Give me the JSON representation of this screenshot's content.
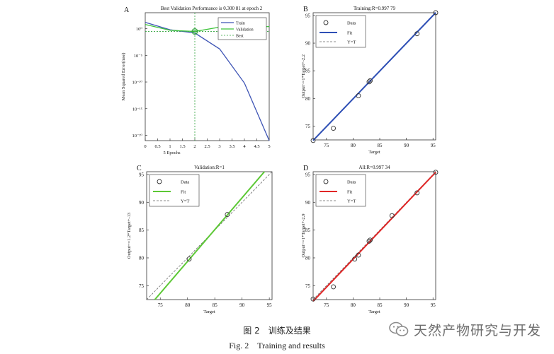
{
  "caption": {
    "chinese": "图 2　训练及结果",
    "english": "Fig. 2　Training and results"
  },
  "watermark": {
    "text": "天然产物研究与开发",
    "icon": "wechat-icon"
  },
  "colors": {
    "train": "#3f55b5",
    "validation_curve": "#3ec43a",
    "best_line": "#2fa33a",
    "training_fit": "#2e4fb5",
    "validation_fit": "#5cc835",
    "all_fit": "#e12626",
    "identity": "#666666"
  },
  "chart_data": [
    {
      "panel": "A",
      "type": "line",
      "title": "Best Validation Performance is 0.300 81 at epoch 2",
      "xlabel": "5 Epochs",
      "ylabel": "Mean Squared Error(mse)",
      "xlim": [
        0,
        5
      ],
      "ylim_log10": [
        -21,
        3
      ],
      "y_scale": "log",
      "xticks": [
        0,
        0.5,
        1,
        1.5,
        2,
        2.5,
        3,
        3.5,
        4,
        4.5,
        5
      ],
      "xtick_labels": [
        "0",
        "0.5",
        "1",
        "1.5",
        "2",
        "2.5",
        "3",
        "3.5",
        "4",
        "4.5",
        "5"
      ],
      "yticks_log10": [
        0,
        -5,
        -10,
        -15,
        -20
      ],
      "ytick_labels": [
        "10⁰",
        "10⁻⁵",
        "10⁻¹⁰",
        "10⁻¹⁵",
        "10⁻²⁰"
      ],
      "series": [
        {
          "name": "Train",
          "x": [
            0,
            1,
            2,
            3,
            4,
            5
          ],
          "y_log10": [
            1.2,
            -0.2,
            -0.8,
            -3.8,
            -10.2,
            -21
          ]
        },
        {
          "name": "Validation",
          "x": [
            0,
            1,
            2,
            3,
            4,
            5
          ],
          "y_log10": [
            0.8,
            -0.3,
            -0.52,
            0.3,
            0.35,
            0.4
          ]
        }
      ],
      "best": {
        "name": "Best",
        "epoch": 2,
        "value_log10": -0.52
      },
      "legend": [
        "Train",
        "Validation",
        "Best"
      ],
      "legend_position": "top-right"
    },
    {
      "panel": "B",
      "type": "scatter",
      "title": "Training:R=0.997 79",
      "xlabel": "Target",
      "ylabel": "Output~=1*Target+-2.2",
      "xlim": [
        72.5,
        95.5
      ],
      "ylim": [
        72.5,
        95.5
      ],
      "xticks": [
        75,
        80,
        85,
        90,
        95
      ],
      "yticks": [
        75,
        80,
        85,
        90,
        95
      ],
      "points": [
        [
          72.5,
          72.4
        ],
        [
          76.3,
          74.6
        ],
        [
          81,
          80.5
        ],
        [
          83,
          83
        ],
        [
          83.2,
          83.2
        ],
        [
          92,
          91.7
        ],
        [
          95.5,
          95.5
        ]
      ],
      "fit_line": [
        [
          72.5,
          72.4
        ],
        [
          95.5,
          95.5
        ]
      ],
      "fit_color_key": "training_fit",
      "legend": [
        "Data",
        "Fit",
        "Y=T"
      ],
      "legend_position": "top-left"
    },
    {
      "panel": "C",
      "type": "scatter",
      "title": "Validation:R=1",
      "xlabel": "Target",
      "ylabel": "Output~=1.2*Target+-13",
      "xlim": [
        72.5,
        95.5
      ],
      "ylim": [
        72.5,
        95.5
      ],
      "xticks": [
        75,
        80,
        85,
        90,
        95
      ],
      "yticks": [
        75,
        80,
        85,
        90,
        95
      ],
      "points": [
        [
          80.3,
          79.8
        ],
        [
          87.3,
          87.8
        ]
      ],
      "fit_line": [
        [
          74,
          72.5
        ],
        [
          94.1,
          95.5
        ]
      ],
      "fit_color_key": "validation_fit",
      "legend": [
        "Data",
        "Fit",
        "Y=T"
      ],
      "legend_position": "top-left"
    },
    {
      "panel": "D",
      "type": "scatter",
      "title": "All:R=0.997 34",
      "xlabel": "Target",
      "ylabel": "Output~=1*Target+-2.9",
      "xlim": [
        72.5,
        95.5
      ],
      "ylim": [
        72.5,
        95.5
      ],
      "xticks": [
        75,
        80,
        85,
        90,
        95
      ],
      "yticks": [
        75,
        80,
        85,
        90,
        95
      ],
      "points": [
        [
          72.5,
          72.6
        ],
        [
          76.3,
          74.8
        ],
        [
          80.3,
          79.8
        ],
        [
          81,
          80.5
        ],
        [
          83,
          83
        ],
        [
          83.2,
          83.2
        ],
        [
          87.3,
          87.6
        ],
        [
          92,
          91.7
        ],
        [
          95.5,
          95.4
        ]
      ],
      "fit_line": [
        [
          72.5,
          72.2
        ],
        [
          95.5,
          95.4
        ]
      ],
      "fit_color_key": "all_fit",
      "legend": [
        "Data",
        "Fit",
        "Y=T"
      ],
      "legend_position": "top-left"
    }
  ]
}
